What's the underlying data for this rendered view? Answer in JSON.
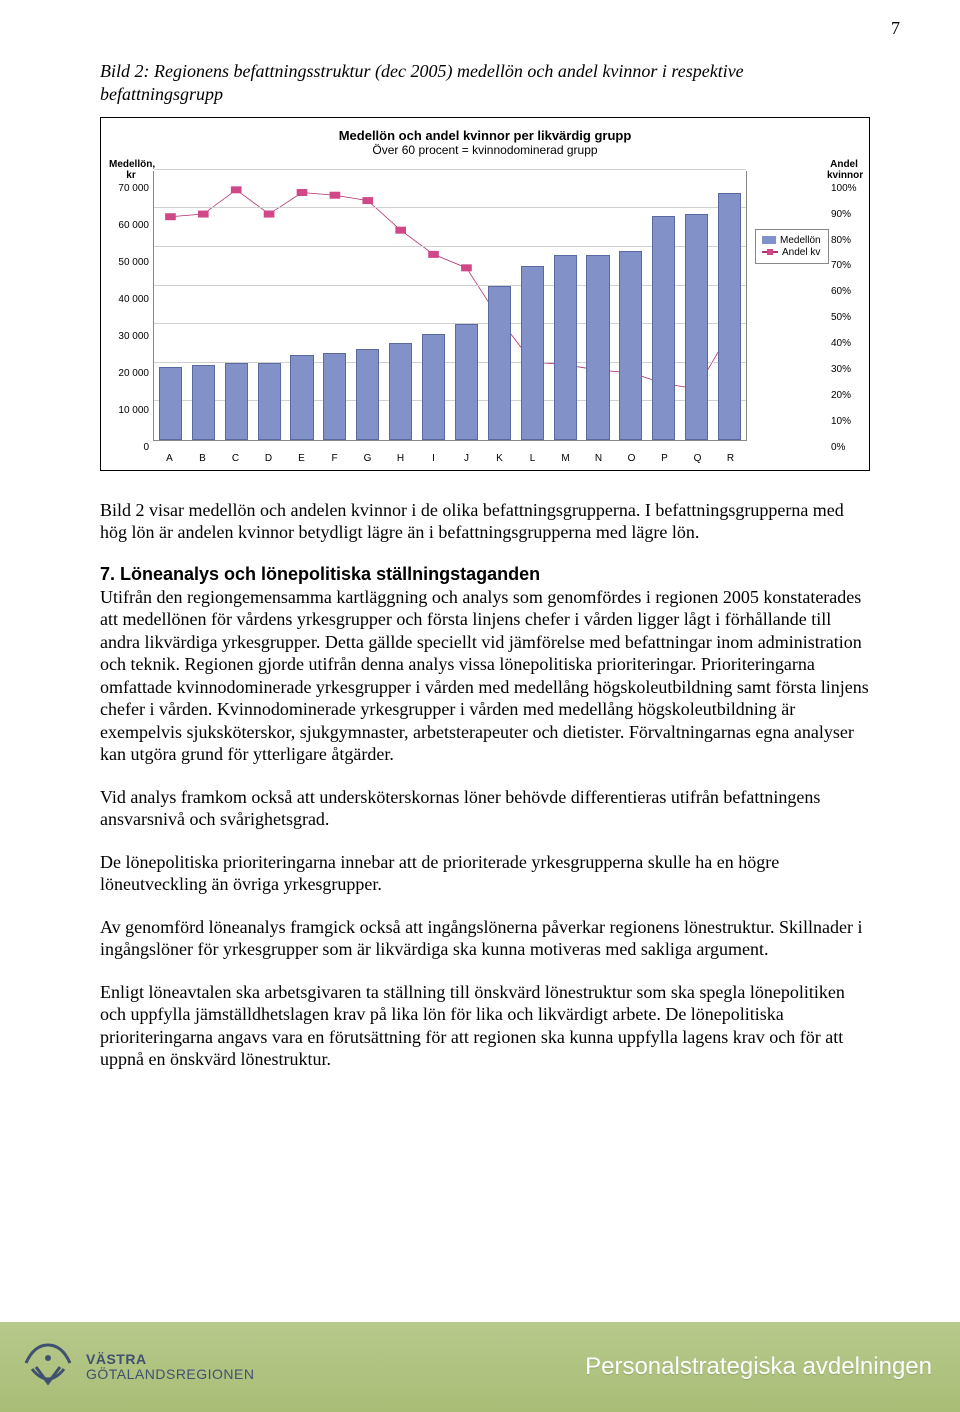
{
  "page_number": "7",
  "figure_caption": "Bild 2: Regionens befattningsstruktur (dec 2005) medellön och andel kvinnor i respektive befattningsgrupp",
  "chart": {
    "type": "bar+line",
    "title": "Medellön och andel kvinnor per likvärdig grupp",
    "subtitle": "Över 60 procent = kvinnodominerad grupp",
    "left_axis_label": "Medellön, kr",
    "right_axis_label": "Andel kvinnor",
    "left_ticks": [
      "70 000",
      "60 000",
      "50 000",
      "40 000",
      "30 000",
      "20 000",
      "10 000",
      "0"
    ],
    "right_ticks": [
      "100%",
      "90%",
      "80%",
      "70%",
      "60%",
      "50%",
      "40%",
      "30%",
      "20%",
      "10%",
      "0%"
    ],
    "categories": [
      "A",
      "B",
      "C",
      "D",
      "E",
      "F",
      "G",
      "H",
      "I",
      "J",
      "K",
      "L",
      "M",
      "N",
      "O",
      "P",
      "Q",
      "R"
    ],
    "bar_values": [
      19000,
      19500,
      20000,
      20000,
      22000,
      22500,
      23500,
      25000,
      27500,
      30000,
      40000,
      45000,
      47800,
      48000,
      49000,
      58000,
      58500,
      64000
    ],
    "bar_ymax": 70000,
    "line_values": [
      83,
      84,
      93,
      84,
      92,
      91,
      89,
      78,
      69,
      64,
      45,
      29,
      28,
      26,
      25,
      21,
      19,
      40
    ],
    "line_ymax": 100,
    "bar_color": "#8292c8",
    "line_color": "#b03070",
    "marker_color": "#d04888",
    "grid_color": "#d0d0d0",
    "background": "#ffffff",
    "legend": {
      "bar_label": "Medellön",
      "line_label": "Andel kv"
    }
  },
  "para1": "Bild 2 visar medellön och andelen kvinnor i de olika befattningsgrupperna. I befattningsgrupperna med hög lön är andelen kvinnor betydligt lägre än i befattningsgrupperna med lägre lön.",
  "section7_heading": "7. Löneanalys och lönepolitiska ställningstaganden",
  "para2": "Utifrån den regiongemensamma kartläggning och analys som genomfördes i regionen 2005 konstaterades att medellönen för vårdens yrkesgrupper och första linjens chefer i vården ligger lågt i förhållande till andra likvärdiga yrkesgrupper. Detta gällde speciellt vid jämförelse med befattningar inom administration och teknik. Regionen gjorde utifrån denna analys vissa lönepolitiska prioriteringar. Prioriteringarna omfattade kvinnodominerade yrkesgrupper i vården med medellång högskoleutbildning samt första linjens chefer i vården. Kvinnodominerade yrkesgrupper i vården med medellång högskoleutbildning är exempelvis sjuksköterskor, sjukgymnaster, arbetsterapeuter och dietister. Förvaltningarnas egna analyser kan utgöra grund för ytterligare åtgärder.",
  "para3": "Vid analys framkom också att undersköterskornas löner behövde differentieras utifrån befattningens ansvarsnivå och svårighetsgrad.",
  "para4": "De lönepolitiska prioriteringarna innebar att de prioriterade yrkesgrupperna skulle ha en högre löneutveckling än övriga yrkesgrupper.",
  "para5": "Av genomförd löneanalys framgick också att ingångslönerna påverkar regionens lönestruktur. Skillnader i ingångslöner för yrkesgrupper som är likvärdiga ska kunna motiveras med sakliga argument.",
  "para6": "Enligt löneavtalen ska arbetsgivaren ta ställning till önskvärd lönestruktur som ska spegla lönepolitiken och uppfylla jämställdhetslagen krav på lika lön för lika och likvärdigt arbete. De lönepolitiska prioriteringarna angavs vara en förutsättning för att regionen ska kunna uppfylla lagens krav och för att uppnå en önskvärd lönestruktur.",
  "footer": {
    "org_line1": "VÄSTRA",
    "org_line2": "GÖTALANDSREGIONEN",
    "dept": "Personalstrategiska avdelningen"
  }
}
